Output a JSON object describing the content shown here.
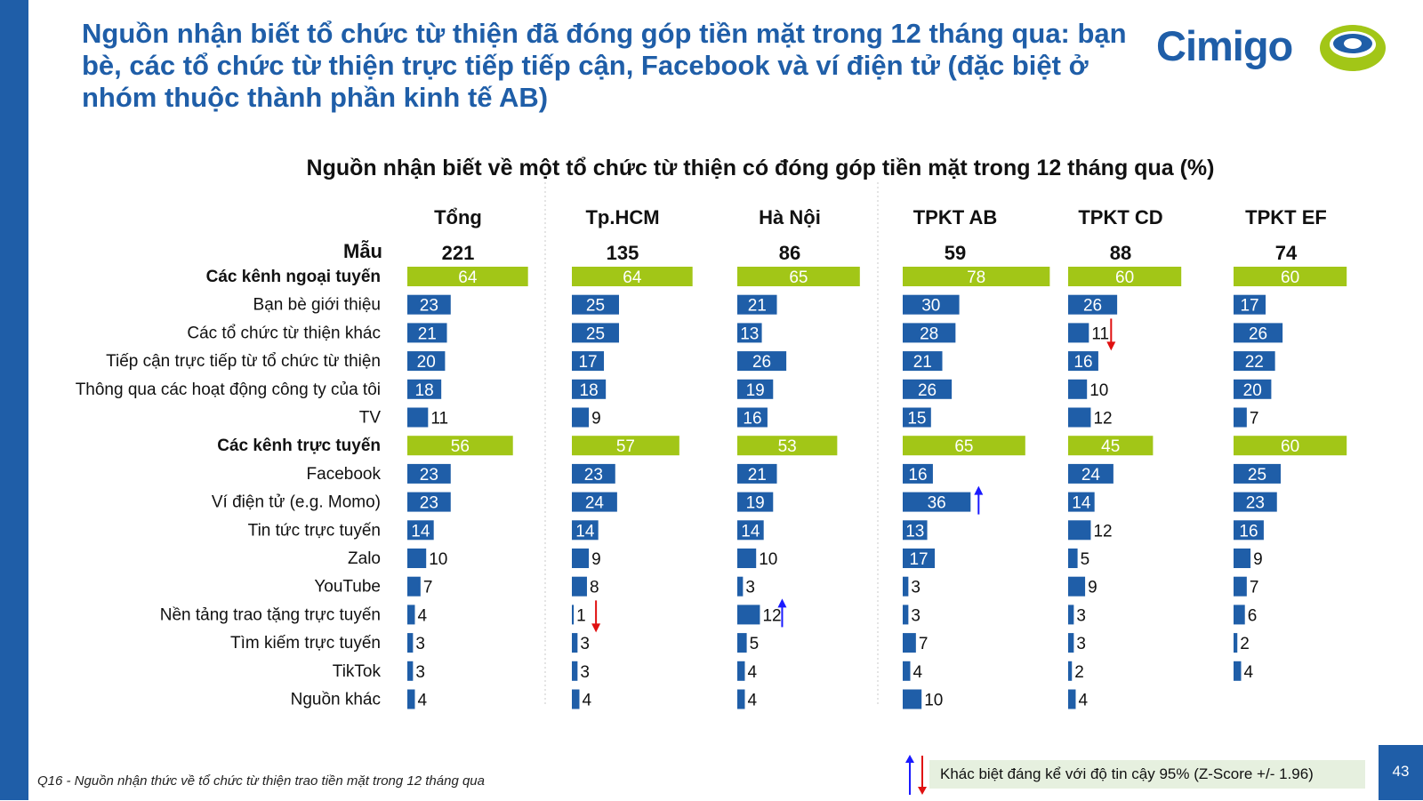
{
  "slide": {
    "title": "Nguồn nhận biết tổ chức từ thiện đã đóng góp tiền mặt trong 12 tháng qua: bạn bè, các tổ chức từ thiện trực tiếp tiếp cận, Facebook và ví điện tử (đặc biệt ở nhóm thuộc thành phần kinh tế AB)",
    "logo_text": "Cimigo",
    "footnote": "Q16 - Nguồn nhận thức về tổ chức từ thiện trao tiền mặt trong 12 tháng qua",
    "legend_text": "Khác biệt đáng kể với độ tin cậy 95% (Z-Score +/- 1.96)",
    "page_number": "43",
    "colors": {
      "brand_blue": "#1f5ea8",
      "bar_blue": "#1f5ea8",
      "bar_green": "#a2c617",
      "up_arrow": "#1a1aff",
      "down_arrow": "#e01010",
      "legend_bg": "#e6f0df"
    }
  },
  "chart_data": {
    "type": "bar",
    "title": "Nguồn nhận biết về một tổ chức từ thiện có đóng góp tiền mặt trong 12 tháng qua (%)",
    "sample_label": "Mẫu",
    "columns": [
      {
        "name": "Tổng",
        "n": "221"
      },
      {
        "name": "Tp.HCM",
        "n": "135"
      },
      {
        "name": "Hà Nội",
        "n": "86"
      },
      {
        "name": "TPKT AB",
        "n": "59"
      },
      {
        "name": "TPKT CD",
        "n": "88"
      },
      {
        "name": "TPKT EF",
        "n": "74"
      }
    ],
    "categories": [
      "Các kênh ngoại tuyến",
      "Bạn bè giới thiệu",
      "Các tổ chức từ thiện khác",
      "Tiếp cận trực tiếp từ tổ chức từ thiện",
      "Thông qua các hoạt động công ty của tôi",
      "TV",
      "Các kênh trực tuyến",
      "Facebook",
      "Ví điện tử (e.g. Momo)",
      "Tin tức trực tuyến",
      "Zalo",
      "YouTube",
      "Nền tảng trao tặng trực tuyến",
      "Tìm kiếm trực tuyến",
      "TikTok",
      "Nguồn khác"
    ],
    "summary_rows": [
      0,
      6
    ],
    "series": [
      {
        "name": "Tổng",
        "values": [
          64,
          23,
          21,
          20,
          18,
          11,
          56,
          23,
          23,
          14,
          10,
          7,
          4,
          3,
          3,
          4
        ]
      },
      {
        "name": "Tp.HCM",
        "values": [
          64,
          25,
          25,
          17,
          18,
          9,
          57,
          23,
          24,
          14,
          9,
          8,
          1,
          3,
          3,
          4
        ]
      },
      {
        "name": "Hà Nội",
        "values": [
          65,
          21,
          13,
          26,
          19,
          16,
          53,
          21,
          19,
          14,
          10,
          3,
          12,
          5,
          4,
          4
        ]
      },
      {
        "name": "TPKT AB",
        "values": [
          78,
          30,
          28,
          21,
          26,
          15,
          65,
          16,
          36,
          13,
          17,
          3,
          3,
          7,
          4,
          10
        ]
      },
      {
        "name": "TPKT CD",
        "values": [
          60,
          26,
          11,
          16,
          10,
          12,
          45,
          24,
          14,
          12,
          5,
          9,
          3,
          3,
          2,
          4
        ]
      },
      {
        "name": "TPKT EF",
        "values": [
          60,
          17,
          26,
          22,
          20,
          7,
          60,
          25,
          23,
          16,
          9,
          7,
          6,
          2,
          4,
          null
        ]
      }
    ],
    "significance": [
      {
        "series": "TPKT CD",
        "category": "Các tổ chức từ thiện khác",
        "direction": "down"
      },
      {
        "series": "TPKT AB",
        "category": "Ví điện tử (e.g. Momo)",
        "direction": "up"
      },
      {
        "series": "Tp.HCM",
        "category": "Nền tảng trao tặng trực tuyến",
        "direction": "down"
      },
      {
        "series": "Hà Nội",
        "category": "Nền tảng trao tặng trực tuyến",
        "direction": "up"
      }
    ]
  }
}
